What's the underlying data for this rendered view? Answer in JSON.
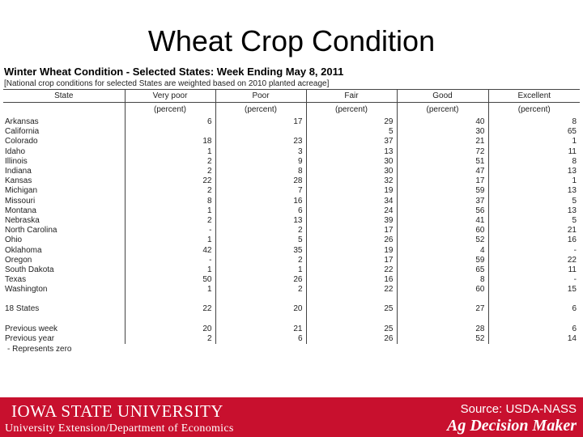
{
  "slide": {
    "title": "Wheat Crop Condition"
  },
  "table": {
    "title": "Winter Wheat Condition - Selected States: Week Ending May 8, 2011",
    "subtitle": "[National crop conditions for selected States are weighted based on 2010 planted acreage]",
    "headers": [
      "State",
      "Very poor",
      "Poor",
      "Fair",
      "Good",
      "Excellent"
    ],
    "units": [
      "",
      "(percent)",
      "(percent)",
      "(percent)",
      "(percent)",
      "(percent)"
    ],
    "rows": [
      [
        "Arkansas",
        "6",
        "17",
        "29",
        "40",
        "8"
      ],
      [
        "California",
        "",
        "",
        "5",
        "30",
        "65"
      ],
      [
        "Colorado",
        "18",
        "23",
        "37",
        "21",
        "1"
      ],
      [
        "Idaho",
        "1",
        "3",
        "13",
        "72",
        "11"
      ],
      [
        "Illinois",
        "2",
        "9",
        "30",
        "51",
        "8"
      ],
      [
        "Indiana",
        "2",
        "8",
        "30",
        "47",
        "13"
      ],
      [
        "Kansas",
        "22",
        "28",
        "32",
        "17",
        "1"
      ],
      [
        "Michigan",
        "2",
        "7",
        "19",
        "59",
        "13"
      ],
      [
        "Missouri",
        "8",
        "16",
        "34",
        "37",
        "5"
      ],
      [
        "Montana",
        "1",
        "6",
        "24",
        "56",
        "13"
      ],
      [
        "Nebraska",
        "2",
        "13",
        "39",
        "41",
        "5"
      ],
      [
        "North Carolina",
        "-",
        "2",
        "17",
        "60",
        "21"
      ],
      [
        "Ohio",
        "1",
        "5",
        "26",
        "52",
        "16"
      ],
      [
        "Oklahoma",
        "42",
        "35",
        "19",
        "4",
        "-"
      ],
      [
        "Oregon",
        "-",
        "2",
        "17",
        "59",
        "22"
      ],
      [
        "South Dakota",
        "1",
        "1",
        "22",
        "65",
        "11"
      ],
      [
        "Texas",
        "50",
        "26",
        "16",
        "8",
        "-"
      ],
      [
        "Washington",
        "1",
        "2",
        "22",
        "60",
        "15"
      ]
    ],
    "summary": {
      "label": "18 States",
      "values": [
        "22",
        "20",
        "25",
        "27",
        "6"
      ]
    },
    "previous_week": [
      "Previous week",
      "20",
      "21",
      "25",
      "28",
      "6"
    ],
    "previous_year": [
      "Previous year",
      "2",
      "6",
      "26",
      "52",
      "14"
    ],
    "note": "- Represents zero"
  },
  "footer": {
    "university": "IOWA STATE UNIVERSITY",
    "department": "University Extension/Department of Economics",
    "source": "Source: USDA-NASS",
    "brand": "Ag Decision Maker",
    "background_color": "#c8102e"
  }
}
